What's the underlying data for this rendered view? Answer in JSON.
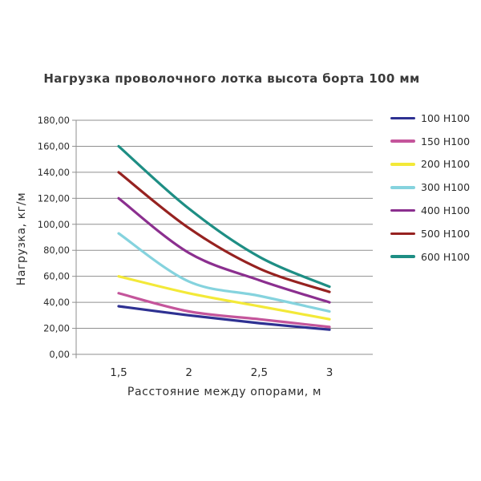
{
  "chart_data": {
    "type": "line",
    "title": "Нагрузка проволочного лотка высота борта 100 мм",
    "xlabel": "Расстояние между опорами, м",
    "ylabel": "Нагрузка, кг/м",
    "x": [
      1.5,
      2,
      2.5,
      3
    ],
    "x_tick_labels": [
      "1,5",
      "2",
      "2,5",
      "3"
    ],
    "ylim": [
      0,
      180
    ],
    "y_tick_step": 20,
    "y_tick_labels": [
      "0,00",
      "20,00",
      "40,00",
      "60,00",
      "80,00",
      "100,00",
      "120,00",
      "140,00",
      "160,00",
      "180,00"
    ],
    "grid": true,
    "line_style": "smooth",
    "legend_position": "right",
    "series": [
      {
        "name": "100 H100",
        "color": "#2e3192",
        "values": [
          37,
          30,
          24,
          19
        ]
      },
      {
        "name": "150 H100",
        "color": "#c4559b",
        "values": [
          47,
          33,
          27,
          21
        ]
      },
      {
        "name": "200 H100",
        "color": "#f3e938",
        "values": [
          60,
          47,
          37,
          27
        ]
      },
      {
        "name": "300 H100",
        "color": "#85d3de",
        "values": [
          93,
          56,
          45,
          33
        ]
      },
      {
        "name": "400 H100",
        "color": "#8b2f8f",
        "values": [
          120,
          78,
          57,
          40
        ]
      },
      {
        "name": "500 H100",
        "color": "#962220",
        "values": [
          140,
          97,
          66,
          48
        ]
      },
      {
        "name": "600 H100",
        "color": "#1e8e84",
        "values": [
          160,
          112,
          75,
          52
        ]
      }
    ],
    "colors": {
      "grid": "#8f8f8f",
      "axis": "#8f8f8f",
      "text": "#2b2b2b",
      "background": "#ffffff"
    }
  }
}
